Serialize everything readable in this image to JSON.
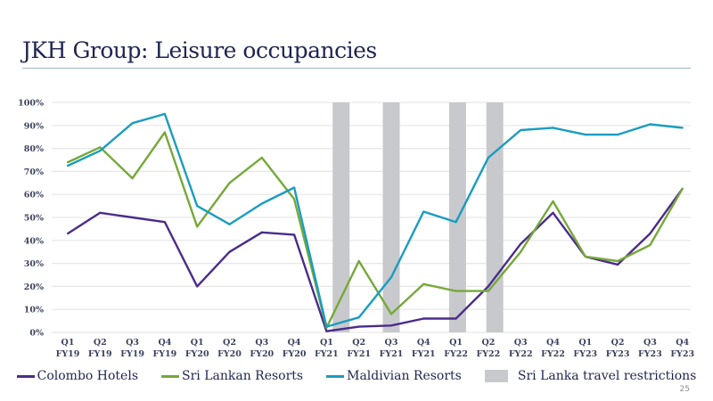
{
  "slide": {
    "title": "JKH Group: Leisure occupancies",
    "page_number": "25"
  },
  "colors": {
    "colombo": "#4b2c8a",
    "sri_lankan": "#76a83a",
    "maldivian": "#1a9cc0",
    "restriction": "#c8c9cc",
    "grid": "#e6e6e6"
  },
  "chart_data": {
    "type": "line",
    "title": "JKH Group: Leisure occupancies",
    "xlabel": "",
    "ylabel": "",
    "ylim": [
      0,
      100
    ],
    "y_ticks": [
      "0%",
      "10%",
      "20%",
      "30%",
      "40%",
      "50%",
      "60%",
      "70%",
      "80%",
      "90%",
      "100%"
    ],
    "grid": true,
    "legend_position": "bottom",
    "categories": [
      [
        "Q1",
        "FY19"
      ],
      [
        "Q2",
        "FY19"
      ],
      [
        "Q3",
        "FY19"
      ],
      [
        "Q4",
        "FY19"
      ],
      [
        "Q1",
        "FY20"
      ],
      [
        "Q2",
        "FY20"
      ],
      [
        "Q3",
        "FY20"
      ],
      [
        "Q4",
        "FY20"
      ],
      [
        "Q1",
        "FY21"
      ],
      [
        "Q2",
        "FY21"
      ],
      [
        "Q3",
        "FY21"
      ],
      [
        "Q4",
        "FY21"
      ],
      [
        "Q1",
        "FY22"
      ],
      [
        "Q2",
        "FY22"
      ],
      [
        "Q3",
        "FY22"
      ],
      [
        "Q4",
        "FY22"
      ],
      [
        "Q1",
        "FY23"
      ],
      [
        "Q2",
        "FY23"
      ],
      [
        "Q3",
        "FY23"
      ],
      [
        "Q4",
        "FY23"
      ]
    ],
    "series": [
      {
        "name": "Colombo Hotels",
        "color_key": "colombo",
        "values": [
          43,
          52,
          50,
          48,
          20,
          35,
          43.5,
          42.5,
          0.5,
          2.5,
          3,
          6,
          6,
          20,
          38.5,
          52,
          33,
          29.5,
          43,
          62.5
        ]
      },
      {
        "name": "Sri Lankan Resorts",
        "color_key": "sri_lankan",
        "values": [
          74,
          80.5,
          67,
          87,
          46,
          65,
          76,
          58,
          2,
          31,
          8,
          21,
          18,
          18,
          35,
          57,
          33,
          31,
          38,
          62.5
        ]
      },
      {
        "name": "Maldivian Resorts",
        "color_key": "maldivian",
        "values": [
          72.5,
          79,
          91,
          95,
          55,
          47,
          56,
          63,
          2.5,
          6.5,
          24,
          52.5,
          48,
          76,
          88,
          89,
          86,
          86,
          90.5,
          89
        ]
      }
    ],
    "restrictions": {
      "name": "Sri Lanka travel restrictions",
      "periods": [
        "Q1-Q2 FY21",
        "Q2-Q3 FY21",
        "Q4 FY21-Q1 FY22",
        "Q1-Q2 FY22"
      ],
      "positions_in_category_units": [
        8.45,
        10.0,
        12.05,
        13.2
      ]
    }
  }
}
